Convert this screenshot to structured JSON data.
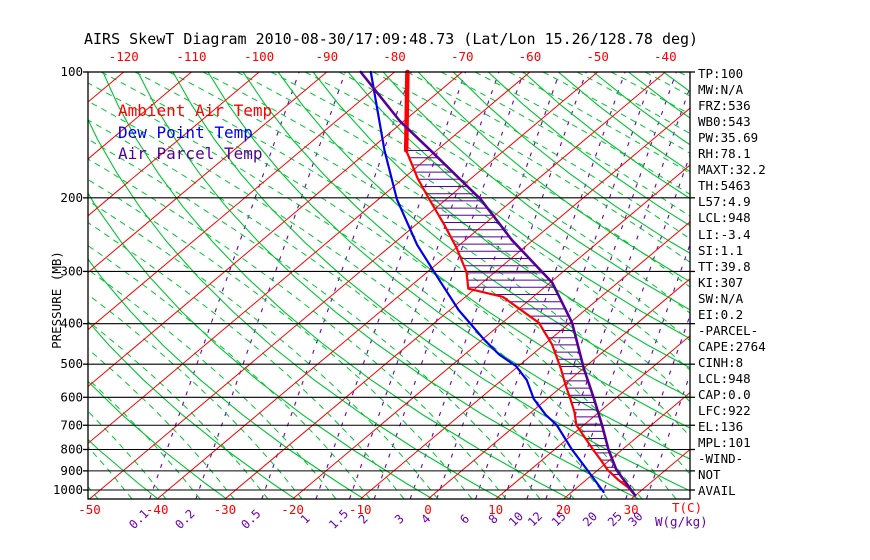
{
  "title": "AIRS SkewT Diagram 2010-08-30/17:09:48.73 (Lat/Lon 15.26/128.78 deg)",
  "colors": {
    "ambient": "#ff0000",
    "dew_point": "#0000ee",
    "parcel": "#550099",
    "isotherm": "#ff0000",
    "adiabat": "#00c432",
    "mixing": "#6a00b4",
    "axis": "#000000",
    "background": "#ffffff"
  },
  "legend": [
    {
      "label": "Ambient Air Temp",
      "color_key": "ambient"
    },
    {
      "label": "Dew Point Temp",
      "color_key": "dew_point"
    },
    {
      "label": "Air Parcel Temp",
      "color_key": "parcel"
    }
  ],
  "stats": [
    "TP:100",
    "MW:N/A",
    "FRZ:536",
    "WB0:543",
    "PW:35.69",
    "RH:78.1",
    "MAXT:32.2",
    "TH:5463",
    "L57:4.9",
    "LCL:948",
    "LI:-3.4",
    "SI:1.1",
    "TT:39.8",
    "KI:307",
    "SW:N/A",
    "EI:0.2",
    "-PARCEL-",
    "CAPE:2764",
    "CINH:8",
    "LCL:948",
    "CAP:0.0",
    "LFC:922",
    "EL:136",
    "MPL:101",
    "-WIND-",
    "NOT",
    "AVAIL"
  ],
  "axes": {
    "pressure_label": "PRESSURE (MB)",
    "pressure_ticks": [
      100,
      200,
      300,
      400,
      500,
      600,
      700,
      800,
      900,
      1000
    ],
    "top_temp_ticks": [
      -120,
      -110,
      -100,
      -90,
      -80,
      -70,
      -60,
      -50,
      -40
    ],
    "bottom_temp_ticks": [
      -50,
      -40,
      -30,
      -20,
      -10,
      0,
      10,
      20,
      30
    ],
    "temp_axis_label": "T(C)",
    "mixing_ratio_label": "W(g/kg)",
    "mixing_ratio_ticks": [
      0.1,
      0.2,
      0.5,
      1,
      1.5,
      2,
      3,
      4,
      6,
      8,
      10,
      12,
      15,
      20,
      25,
      30
    ]
  },
  "chart_data": {
    "type": "line",
    "title": "AIRS SkewT Diagram 2010-08-30/17:09:48.73 (Lat/Lon 15.26/128.78 deg)",
    "xlabel": "Temperature (C), skewed isotherms",
    "ylabel": "Pressure (MB), log scale",
    "ylim": [
      1050,
      100
    ],
    "legend_position": "top-left",
    "grid": "skew-t background: isotherms, dry/moist adiabats, mixing-ratio lines, isobars",
    "background": {
      "isotherms_c": {
        "min": -160,
        "max": 60,
        "step": 10
      },
      "dry_adiabats_k": {
        "min": 210,
        "max": 470,
        "step": 10
      },
      "pressure_lines_mb": [
        100,
        200,
        300,
        400,
        500,
        600,
        700,
        800,
        900,
        1000
      ],
      "mixing_ratio_gkg": [
        0.1,
        0.2,
        0.5,
        1,
        1.5,
        2,
        3,
        4,
        6,
        8,
        10,
        12,
        15,
        20,
        25,
        30
      ]
    },
    "hatched_region": "CAPE area hatched between Ambient Air Temp and Air Parcel Temp from ~150mb to surface",
    "series": [
      {
        "name": "Ambient Air Temp",
        "color_key": "ambient",
        "points_p_t": [
          [
            100,
            -78.1
          ],
          [
            154,
            -64.5
          ],
          [
            180,
            -57.8
          ],
          [
            202,
            -52.4
          ],
          [
            232,
            -45.8
          ],
          [
            263,
            -40
          ],
          [
            301,
            -34.2
          ],
          [
            330,
            -31
          ],
          [
            345,
            -24.5
          ],
          [
            398,
            -14.6
          ],
          [
            449,
            -8.8
          ],
          [
            511,
            -3.4
          ],
          [
            561,
            0.3
          ],
          [
            605,
            3.4
          ],
          [
            650,
            6.3
          ],
          [
            699,
            8.9
          ],
          [
            757,
            12.9
          ],
          [
            799,
            15.6
          ],
          [
            848,
            18.7
          ],
          [
            895,
            21.4
          ],
          [
            945,
            24.7
          ],
          [
            987,
            27.6
          ],
          [
            1031,
            30
          ]
        ]
      },
      {
        "name": "Dew Point Temp",
        "color_key": "dew_point",
        "points_p_t": [
          [
            100,
            -83.5
          ],
          [
            154,
            -67.7
          ],
          [
            202,
            -57.2
          ],
          [
            259,
            -46.3
          ],
          [
            314,
            -36.9
          ],
          [
            371,
            -28.7
          ],
          [
            437,
            -19.7
          ],
          [
            474,
            -14.9
          ],
          [
            505,
            -10.4
          ],
          [
            546,
            -6.3
          ],
          [
            605,
            -2.0
          ],
          [
            661,
            2.6
          ],
          [
            699,
            6.0
          ],
          [
            799,
            12.5
          ],
          [
            895,
            18.4
          ],
          [
            1011,
            24.7
          ]
        ]
      },
      {
        "name": "Air Parcel Temp",
        "color_key": "parcel",
        "points_p_t": [
          [
            100,
            -85.0
          ],
          [
            131,
            -70.6
          ],
          [
            154,
            -60.9
          ],
          [
            202,
            -44.8
          ],
          [
            252,
            -33.2
          ],
          [
            319,
            -19.7
          ],
          [
            398,
            -9.7
          ],
          [
            511,
            0.0
          ],
          [
            605,
            6.9
          ],
          [
            699,
            12.7
          ],
          [
            799,
            17.9
          ],
          [
            895,
            22.7
          ],
          [
            961,
            26.4
          ],
          [
            1031,
            30
          ]
        ]
      }
    ]
  }
}
